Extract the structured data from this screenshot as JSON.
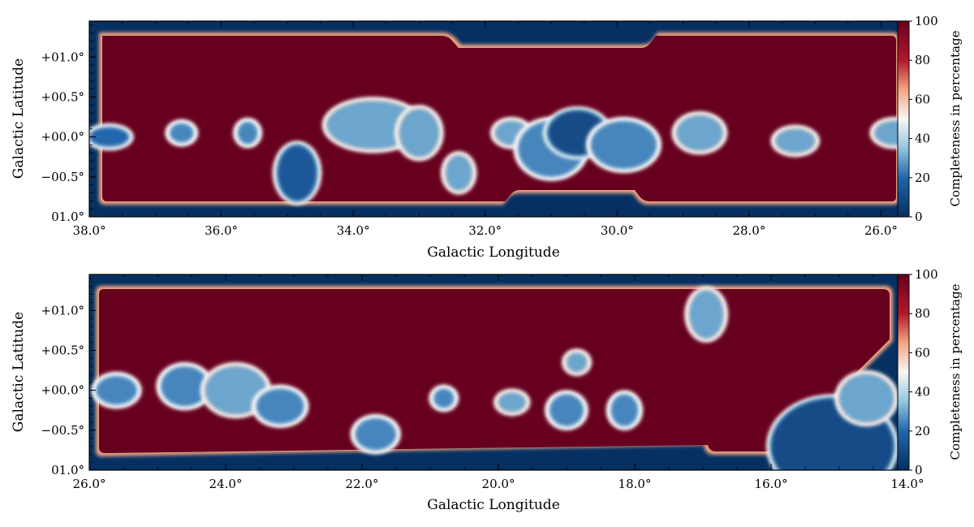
{
  "colors": {
    "low": "#053061",
    "mid_low": "#4393c3",
    "mid": "#f7f7f7",
    "mid_high": "#f4a582",
    "high": "#67001f"
  },
  "chart_data": [
    {
      "type": "heatmap",
      "panel": "top",
      "colormap": "RdBu_r",
      "xlabel": "Galactic Longitude",
      "ylabel": "Galactic Latitude",
      "colorbar_label": "Completeness in percentage",
      "xlim": [
        38.0,
        25.6
      ],
      "ylim": [
        -1.0,
        1.45
      ],
      "xticks": [
        {
          "value": 38.0,
          "label": "38.0°"
        },
        {
          "value": 36.0,
          "label": "36.0°"
        },
        {
          "value": 34.0,
          "label": "34.0°"
        },
        {
          "value": 32.0,
          "label": "32.0°"
        },
        {
          "value": 30.0,
          "label": "30.0°"
        },
        {
          "value": 28.0,
          "label": "28.0°"
        },
        {
          "value": 26.0,
          "label": "26.0°"
        }
      ],
      "yticks": [
        {
          "value": 1.0,
          "label": "+01.0°"
        },
        {
          "value": 0.5,
          "label": "+00.5°"
        },
        {
          "value": 0.0,
          "label": "+00.0°"
        },
        {
          "value": -0.5,
          "label": "−00.5°"
        },
        {
          "value": -1.0,
          "label": "01.0°"
        }
      ],
      "colorbar_range": [
        0,
        100
      ],
      "colorbar_ticks": [
        "0",
        "20",
        "40",
        "60",
        "80",
        "100"
      ],
      "low_completeness_regions": [
        {
          "l": 37.7,
          "b": 0.0,
          "rl": 0.3,
          "rb": 0.12,
          "value": 20
        },
        {
          "l": 36.6,
          "b": 0.05,
          "rl": 0.18,
          "rb": 0.12,
          "value": 25
        },
        {
          "l": 35.6,
          "b": 0.05,
          "rl": 0.15,
          "rb": 0.14,
          "value": 25
        },
        {
          "l": 34.85,
          "b": -0.45,
          "rl": 0.3,
          "rb": 0.35,
          "value": 15
        },
        {
          "l": 33.7,
          "b": 0.15,
          "rl": 0.7,
          "rb": 0.3,
          "value": 30
        },
        {
          "l": 33.0,
          "b": 0.05,
          "rl": 0.3,
          "rb": 0.3,
          "value": 30
        },
        {
          "l": 32.4,
          "b": -0.45,
          "rl": 0.2,
          "rb": 0.22,
          "value": 30
        },
        {
          "l": 31.6,
          "b": 0.05,
          "rl": 0.25,
          "rb": 0.15,
          "value": 30
        },
        {
          "l": 31.0,
          "b": -0.15,
          "rl": 0.5,
          "rb": 0.35,
          "value": 25
        },
        {
          "l": 30.6,
          "b": 0.05,
          "rl": 0.45,
          "rb": 0.28,
          "value": 10
        },
        {
          "l": 29.9,
          "b": -0.1,
          "rl": 0.5,
          "rb": 0.3,
          "value": 25
        },
        {
          "l": 28.75,
          "b": 0.05,
          "rl": 0.35,
          "rb": 0.22,
          "value": 30
        },
        {
          "l": 27.3,
          "b": -0.05,
          "rl": 0.3,
          "rb": 0.15,
          "value": 30
        },
        {
          "l": 25.8,
          "b": 0.05,
          "rl": 0.3,
          "rb": 0.15,
          "value": 30
        }
      ]
    },
    {
      "type": "heatmap",
      "panel": "bottom",
      "colormap": "RdBu_r",
      "xlabel": "Galactic Longitude",
      "ylabel": "Galactic Latitude",
      "colorbar_label": "Completeness in percentage",
      "xlim": [
        26.0,
        14.0
      ],
      "ylim": [
        -1.0,
        1.45
      ],
      "xticks": [
        {
          "value": 26.0,
          "label": "26.0°"
        },
        {
          "value": 24.0,
          "label": "24.0°"
        },
        {
          "value": 22.0,
          "label": "22.0°"
        },
        {
          "value": 20.0,
          "label": "20.0°"
        },
        {
          "value": 18.0,
          "label": "18.0°"
        },
        {
          "value": 16.0,
          "label": "16.0°"
        },
        {
          "value": 14.0,
          "label": "14.0°"
        }
      ],
      "yticks": [
        {
          "value": 1.0,
          "label": "+01.0°"
        },
        {
          "value": 0.5,
          "label": "+00.5°"
        },
        {
          "value": 0.0,
          "label": "+00.0°"
        },
        {
          "value": -0.5,
          "label": "−00.5°"
        },
        {
          "value": -1.0,
          "label": "01.0°"
        }
      ],
      "colorbar_range": [
        0,
        100
      ],
      "colorbar_ticks": [
        "0",
        "20",
        "40",
        "60",
        "80",
        "100"
      ],
      "low_completeness_regions": [
        {
          "l": 25.6,
          "b": 0.0,
          "rl": 0.3,
          "rb": 0.18,
          "value": 25
        },
        {
          "l": 24.6,
          "b": 0.05,
          "rl": 0.35,
          "rb": 0.25,
          "value": 25
        },
        {
          "l": 23.85,
          "b": 0.0,
          "rl": 0.45,
          "rb": 0.3,
          "value": 30
        },
        {
          "l": 23.2,
          "b": -0.2,
          "rl": 0.35,
          "rb": 0.22,
          "value": 25
        },
        {
          "l": 21.8,
          "b": -0.55,
          "rl": 0.3,
          "rb": 0.2,
          "value": 25
        },
        {
          "l": 20.8,
          "b": -0.1,
          "rl": 0.15,
          "rb": 0.12,
          "value": 25
        },
        {
          "l": 19.8,
          "b": -0.15,
          "rl": 0.2,
          "rb": 0.12,
          "value": 30
        },
        {
          "l": 19.0,
          "b": -0.25,
          "rl": 0.25,
          "rb": 0.2,
          "value": 25
        },
        {
          "l": 18.85,
          "b": 0.35,
          "rl": 0.15,
          "rb": 0.12,
          "value": 30
        },
        {
          "l": 18.15,
          "b": -0.25,
          "rl": 0.2,
          "rb": 0.2,
          "value": 25
        },
        {
          "l": 16.95,
          "b": 0.95,
          "rl": 0.25,
          "rb": 0.3,
          "value": 30
        },
        {
          "l": 15.1,
          "b": -0.7,
          "rl": 0.9,
          "rb": 0.6,
          "value": 10
        },
        {
          "l": 14.6,
          "b": -0.1,
          "rl": 0.4,
          "rb": 0.3,
          "value": 30
        }
      ]
    }
  ]
}
